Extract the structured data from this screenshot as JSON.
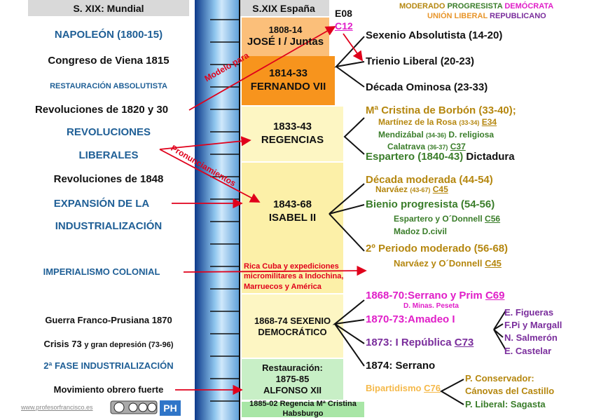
{
  "header": {
    "world": "S. XIX: Mundial",
    "spain": "S.XIX España"
  },
  "legend": {
    "moderado": "MODERADO",
    "progresista": "PROGRESISTA",
    "democrata": "DEMÓCRATA",
    "union_liberal": "UNIÓN LIBERAL",
    "republicano": "REPUBLICANO"
  },
  "top_refs": [
    "E08",
    "C12"
  ],
  "world_events": [
    "NAPOLEÓN (1800-15)",
    "Congreso de Viena 1815",
    "RESTAURACIÓN ABSOLUTISTA",
    "Revoluciones de 1820 y 30",
    "REVOLUCIONES",
    "LIBERALES",
    "Revoluciones de 1848",
    "EXPANSIÓN DE LA",
    "INDUSTRIALIZACIÓN",
    "IMPERIALISMO COLONIAL",
    "Guerra Franco-Prusiana  1870",
    {
      "main": "Crisis 73",
      "rest": "y gran depresión (73-96)"
    },
    "2ª FASE INDUSTRIALIZACIÓN",
    "Movimiento obrero fuerte"
  ],
  "periods": [
    [
      "1808-14",
      "JOSÉ I / Juntas"
    ],
    [
      "1814-33",
      "FERNANDO VII"
    ],
    [
      "1833-43",
      "REGENCIAS"
    ],
    [
      "1843-68",
      "ISABEL II"
    ],
    [
      "1868-74 SEXENIO",
      "DEMOCRÁTICO"
    ],
    [
      "Restauración:",
      "1875-85",
      "ALFONSO XII"
    ],
    [
      "1885-02 Regencia Mª Cristina Habsburgo"
    ]
  ],
  "spain_events": [
    "Sexenio Absolutista (14-20)",
    "Trienio Liberal (20-23)",
    "Década Ominosa (23-33)",
    "Mª Cristina de Borbón (33-40);",
    {
      "name": "Martínez de la Rosa",
      "dates": "(33-34)",
      "ref": "E34"
    },
    {
      "name": "Mendizábal",
      "dates": "(34-36)",
      "extra": "D. religiosa"
    },
    {
      "name": "Calatrava",
      "dates": "(36-37)",
      "ref": "C37"
    },
    {
      "name": "Espartero (1840-43)",
      "extra": "Dictadura"
    },
    "Década moderada (44-54)",
    {
      "name": "Narváez",
      "dates": "(43-67)",
      "ref": "C45"
    },
    "Bienio progresista (54-56)",
    {
      "name": "Espartero y O´Donnell",
      "ref": "C56"
    },
    "Madoz D.civil",
    "2º Periodo moderado (56-68)",
    {
      "name": "Narváez y O´Donnell",
      "ref": "C45"
    },
    {
      "name": "1868-70:Serrano y Prim",
      "ref": "C69"
    },
    "D. Minas. Peseta",
    "1870-73:Amadeo I",
    {
      "name": "1873: I República",
      "ref": "C73"
    },
    "1874: Serrano",
    {
      "name": "Bipartidismo",
      "ref": "C76"
    }
  ],
  "colonial_note": [
    "Rica Cuba y expediciones",
    "micromilitares a Indochina,",
    "Marruecos y América"
  ],
  "arrow_labels": [
    "Modelo para",
    "Pronunciamientos"
  ],
  "republic_presidents": [
    "E. Figueras",
    "F.Pi y Margall",
    "N. Salmerón",
    "E. Castelar"
  ],
  "parties": [
    "P. Conservador:",
    "Cánovas del Castillo",
    "P. Liberal:  Sagasta"
  ],
  "footer": {
    "site": "www.profesorfrancisco.es",
    "badge": "PH"
  }
}
